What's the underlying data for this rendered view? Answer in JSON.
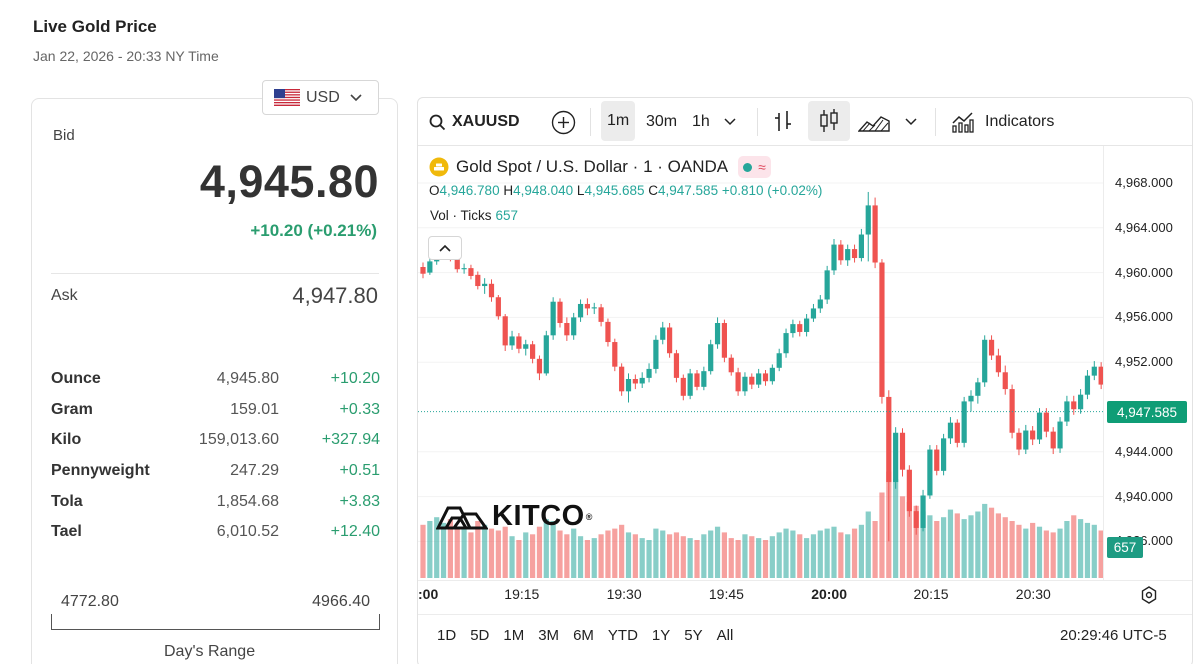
{
  "header": {
    "title": "Live Gold Price",
    "subtitle": "Jan 22, 2026 - 20:33 NY Time"
  },
  "currency": {
    "selected": "USD"
  },
  "quote": {
    "bid_label": "Bid",
    "bid": "4,945.80",
    "change": "+10.20 (+0.21%)",
    "ask_label": "Ask",
    "ask": "4,947.80"
  },
  "units": [
    {
      "name": "Ounce",
      "value": "4,945.80",
      "change": "+10.20"
    },
    {
      "name": "Gram",
      "value": "159.01",
      "change": "+0.33"
    },
    {
      "name": "Kilo",
      "value": "159,013.60",
      "change": "+327.94"
    },
    {
      "name": "Pennyweight",
      "value": "247.29",
      "change": "+0.51"
    },
    {
      "name": "Tola",
      "value": "1,854.68",
      "change": "+3.83"
    },
    {
      "name": "Tael",
      "value": "6,010.52",
      "change": "+12.40"
    }
  ],
  "day_range": {
    "low": "4772.80",
    "high": "4966.40",
    "label": "Day's Range"
  },
  "chart_toolbar": {
    "symbol": "XAUUSD",
    "intervals": [
      "1m",
      "30m",
      "1h"
    ],
    "active_interval": "1m",
    "indicators_label": "Indicators"
  },
  "chart_legend": {
    "title": "Gold Spot / U.S. Dollar · 1 · OANDA",
    "open_label": "O",
    "open": "4,946.780",
    "high_label": "H",
    "high": "4,948.040",
    "low_label": "L",
    "low": "4,945.685",
    "close_label": "C",
    "close": "4,947.585",
    "change": "+0.810 (+0.02%)",
    "volume_label": "Vol · Ticks",
    "volume": "657"
  },
  "chart_footer": {
    "ranges": [
      "1D",
      "5D",
      "1M",
      "3M",
      "6M",
      "YTD",
      "1Y",
      "5Y",
      "All"
    ],
    "clock": "20:29:46 UTC-5"
  },
  "watermark": {
    "text": "KITCO"
  },
  "colors": {
    "up": "#26a69a",
    "down": "#ef5350",
    "accent_green": "#2a9d6f"
  },
  "chart_data": {
    "type": "candlestick",
    "symbol": "XAUUSD",
    "interval": "1m",
    "price_ticks": [
      "4,968.000",
      "4,964.000",
      "4,960.000",
      "4,956.000",
      "4,952.000",
      "4,944.000",
      "4,940.000",
      "4,936.000"
    ],
    "price_tick_values": [
      4968,
      4964,
      4960,
      4956,
      4952,
      4944,
      4940,
      4936
    ],
    "ylim": [
      4934,
      4970
    ],
    "time_ticks": [
      ":00",
      "19:15",
      "19:30",
      "19:45",
      "20:00",
      "20:15",
      "20:30"
    ],
    "time_tick_minutes": [
      0,
      15,
      30,
      45,
      60,
      75,
      90
    ],
    "time_bold": [
      ":00",
      "20:00"
    ],
    "last_price": "4,947.585",
    "last_price_value": 4947.585,
    "last_volume": "657",
    "ohlc": [
      [
        4960.5,
        4960.9,
        4959.5,
        4959.9
      ],
      [
        4960.0,
        4961.4,
        4959.8,
        4961.0
      ],
      [
        4961.0,
        4962.2,
        4960.7,
        4961.9
      ],
      [
        4961.9,
        4962.5,
        4961.4,
        4962.1
      ],
      [
        4962.0,
        4962.6,
        4961.0,
        4961.3
      ],
      [
        4961.3,
        4961.6,
        4960.0,
        4960.3
      ],
      [
        4960.3,
        4960.8,
        4959.9,
        4960.4
      ],
      [
        4960.4,
        4960.7,
        4959.4,
        4959.7
      ],
      [
        4959.8,
        4960.1,
        4958.5,
        4958.8
      ],
      [
        4958.8,
        4959.5,
        4958.1,
        4959.0
      ],
      [
        4959.0,
        4959.4,
        4957.4,
        4957.8
      ],
      [
        4957.8,
        4958.0,
        4955.8,
        4956.1
      ],
      [
        4956.1,
        4956.3,
        4953.0,
        4953.5
      ],
      [
        4953.5,
        4954.8,
        4953.1,
        4954.3
      ],
      [
        4954.3,
        4954.6,
        4952.8,
        4953.2
      ],
      [
        4953.2,
        4954.0,
        4952.6,
        4953.6
      ],
      [
        4953.6,
        4953.9,
        4951.9,
        4952.3
      ],
      [
        4952.3,
        4952.6,
        4950.4,
        4951.0
      ],
      [
        4951.0,
        4954.8,
        4950.8,
        4954.4
      ],
      [
        4954.4,
        4957.8,
        4954.0,
        4957.4
      ],
      [
        4957.4,
        4957.7,
        4955.1,
        4955.5
      ],
      [
        4955.5,
        4956.0,
        4953.9,
        4954.4
      ],
      [
        4954.4,
        4956.4,
        4954.0,
        4956.0
      ],
      [
        4956.0,
        4957.6,
        4955.6,
        4957.2
      ],
      [
        4957.2,
        4957.7,
        4956.2,
        4956.8
      ],
      [
        4956.8,
        4957.3,
        4956.3,
        4956.9
      ],
      [
        4956.9,
        4957.2,
        4955.2,
        4955.6
      ],
      [
        4955.6,
        4955.9,
        4953.4,
        4953.8
      ],
      [
        4953.8,
        4954.1,
        4951.2,
        4951.6
      ],
      [
        4951.6,
        4951.9,
        4949.0,
        4949.4
      ],
      [
        4949.4,
        4951.0,
        4948.4,
        4950.5
      ],
      [
        4950.5,
        4950.9,
        4949.6,
        4950.1
      ],
      [
        4950.1,
        4951.1,
        4949.7,
        4950.6
      ],
      [
        4950.6,
        4951.9,
        4950.2,
        4951.4
      ],
      [
        4951.4,
        4954.4,
        4951.0,
        4954.0
      ],
      [
        4954.0,
        4955.6,
        4953.6,
        4955.1
      ],
      [
        4955.1,
        4955.5,
        4952.4,
        4952.8
      ],
      [
        4952.8,
        4953.1,
        4950.2,
        4950.6
      ],
      [
        4950.6,
        4950.9,
        4948.6,
        4949.0
      ],
      [
        4949.0,
        4951.4,
        4948.7,
        4951.0
      ],
      [
        4951.0,
        4951.3,
        4949.5,
        4949.8
      ],
      [
        4949.8,
        4951.6,
        4949.5,
        4951.2
      ],
      [
        4951.2,
        4954.0,
        4950.9,
        4953.6
      ],
      [
        4953.6,
        4956.0,
        4953.2,
        4955.5
      ],
      [
        4955.5,
        4955.8,
        4952.0,
        4952.4
      ],
      [
        4952.4,
        4952.7,
        4950.8,
        4951.1
      ],
      [
        4951.1,
        4951.5,
        4949.0,
        4949.4
      ],
      [
        4949.4,
        4951.1,
        4949.0,
        4950.7
      ],
      [
        4950.7,
        4951.0,
        4949.6,
        4950.0
      ],
      [
        4950.0,
        4951.4,
        4949.7,
        4951.0
      ],
      [
        4951.0,
        4951.3,
        4949.9,
        4950.3
      ],
      [
        4950.3,
        4951.8,
        4950.0,
        4951.5
      ],
      [
        4951.5,
        4953.2,
        4951.2,
        4952.8
      ],
      [
        4952.8,
        4955.0,
        4952.4,
        4954.6
      ],
      [
        4954.6,
        4955.8,
        4954.2,
        4955.4
      ],
      [
        4955.4,
        4955.7,
        4954.3,
        4954.7
      ],
      [
        4954.7,
        4956.3,
        4954.3,
        4955.9
      ],
      [
        4955.9,
        4957.2,
        4955.6,
        4956.8
      ],
      [
        4956.8,
        4958.0,
        4956.4,
        4957.6
      ],
      [
        4957.6,
        4960.6,
        4957.2,
        4960.2
      ],
      [
        4960.2,
        4963.0,
        4959.8,
        4962.5
      ],
      [
        4962.5,
        4962.9,
        4960.7,
        4961.1
      ],
      [
        4961.1,
        4962.5,
        4960.6,
        4962.1
      ],
      [
        4962.1,
        4962.5,
        4960.9,
        4961.3
      ],
      [
        4961.3,
        4963.9,
        4961.0,
        4963.4
      ],
      [
        4963.4,
        4967.2,
        4961.0,
        4966.0
      ],
      [
        4966.0,
        4966.7,
        4960.4,
        4960.9
      ],
      [
        4960.9,
        4961.2,
        4948.3,
        4948.9
      ],
      [
        4948.9,
        4949.5,
        4936.0,
        4941.3
      ],
      [
        4941.3,
        4946.2,
        4940.7,
        4945.7
      ],
      [
        4945.7,
        4946.1,
        4941.8,
        4942.4
      ],
      [
        4942.4,
        4942.8,
        4938.2,
        4938.7
      ],
      [
        4938.7,
        4939.2,
        4936.6,
        4937.2
      ],
      [
        4937.2,
        4940.6,
        4936.9,
        4940.1
      ],
      [
        4940.1,
        4944.6,
        4939.8,
        4944.2
      ],
      [
        4944.2,
        4944.6,
        4941.9,
        4942.3
      ],
      [
        4942.3,
        4945.6,
        4941.9,
        4945.2
      ],
      [
        4945.2,
        4947.1,
        4944.7,
        4946.6
      ],
      [
        4946.6,
        4946.9,
        4944.4,
        4944.8
      ],
      [
        4944.8,
        4948.9,
        4944.4,
        4948.5
      ],
      [
        4948.5,
        4949.5,
        4947.6,
        4949.0
      ],
      [
        4949.0,
        4950.6,
        4948.3,
        4950.2
      ],
      [
        4950.2,
        4954.4,
        4949.8,
        4954.0
      ],
      [
        4954.0,
        4954.4,
        4952.2,
        4952.6
      ],
      [
        4952.6,
        4953.2,
        4950.7,
        4951.1
      ],
      [
        4951.1,
        4951.7,
        4949.1,
        4949.6
      ],
      [
        4949.6,
        4950.0,
        4945.2,
        4945.7
      ],
      [
        4945.7,
        4946.1,
        4943.7,
        4944.2
      ],
      [
        4944.2,
        4946.4,
        4943.8,
        4945.9
      ],
      [
        4945.9,
        4946.3,
        4944.6,
        4945.1
      ],
      [
        4945.1,
        4947.9,
        4944.7,
        4947.5
      ],
      [
        4947.5,
        4947.9,
        4945.3,
        4945.8
      ],
      [
        4945.8,
        4946.2,
        4943.8,
        4944.3
      ],
      [
        4944.3,
        4947.1,
        4943.9,
        4946.7
      ],
      [
        4946.7,
        4949.0,
        4946.3,
        4948.5
      ],
      [
        4948.5,
        4949.0,
        4947.3,
        4947.8
      ],
      [
        4947.8,
        4949.6,
        4947.4,
        4949.1
      ],
      [
        4949.1,
        4951.3,
        4948.7,
        4950.8
      ],
      [
        4950.8,
        4952.1,
        4950.4,
        4951.6
      ],
      [
        4951.6,
        4952.0,
        4949.6,
        4950.0
      ],
      [
        4950.0,
        4950.3,
        4947.4,
        4947.8
      ],
      [
        4947.8,
        4948.0,
        4945.7,
        4946.8
      ],
      [
        4946.8,
        4948.0,
        4946.4,
        4947.6
      ]
    ],
    "volumes": [
      280,
      300,
      320,
      290,
      310,
      270,
      260,
      240,
      300,
      280,
      260,
      250,
      270,
      220,
      200,
      240,
      230,
      270,
      310,
      300,
      250,
      230,
      260,
      220,
      200,
      210,
      230,
      250,
      260,
      280,
      240,
      230,
      210,
      200,
      260,
      250,
      230,
      240,
      220,
      210,
      200,
      230,
      250,
      270,
      240,
      210,
      200,
      230,
      220,
      210,
      200,
      220,
      240,
      260,
      250,
      230,
      210,
      230,
      250,
      260,
      270,
      240,
      230,
      260,
      280,
      350,
      300,
      450,
      560,
      520,
      430,
      400,
      380,
      350,
      330,
      300,
      320,
      360,
      340,
      310,
      330,
      350,
      390,
      370,
      340,
      320,
      300,
      280,
      260,
      290,
      270,
      250,
      240,
      260,
      300,
      330,
      310,
      290,
      280,
      250,
      230,
      250,
      310
    ]
  }
}
